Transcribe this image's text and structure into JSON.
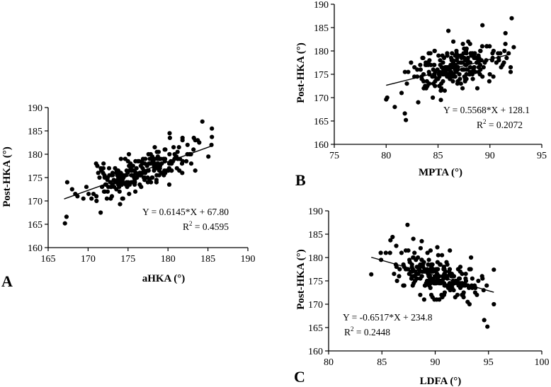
{
  "chart_data": [
    {
      "panel": "A",
      "type": "scatter",
      "xlabel": "aHKA (°)",
      "ylabel": "Post-HKA (°)",
      "xlim": [
        165,
        190
      ],
      "ylim": [
        160,
        190
      ],
      "xticks": [
        165,
        170,
        175,
        180,
        185,
        190
      ],
      "yticks": [
        160,
        165,
        170,
        175,
        180,
        185,
        190
      ],
      "fit": {
        "slope": 0.6145,
        "intercept": 67.8,
        "x_range": [
          167,
          185.5
        ]
      },
      "equation": "Y = 0.6145*X + 67.80",
      "r2_prefix": "R",
      "r2_sup": "2",
      "r2_value": " = 0.4595",
      "n_points": 240,
      "points_seed": 11,
      "x_mean": 176.2,
      "x_sd": 3.3,
      "resid_sd": 2.0,
      "extra_points": [
        [
          167.1,
          165.2
        ],
        [
          167.3,
          166.6
        ],
        [
          184.3,
          187.0
        ],
        [
          185.5,
          183.7
        ],
        [
          180.2,
          184.5
        ],
        [
          171.0,
          178.0
        ],
        [
          174.0,
          169.3
        ]
      ]
    },
    {
      "panel": "B",
      "type": "scatter",
      "xlabel": "MPTA (°)",
      "ylabel": "Post-HKA (°)",
      "xlim": [
        75,
        95
      ],
      "ylim": [
        160,
        190
      ],
      "xticks": [
        75,
        80,
        85,
        90,
        95
      ],
      "yticks": [
        160,
        165,
        170,
        175,
        180,
        185,
        190
      ],
      "fit": {
        "slope": 0.5568,
        "intercept": 128.1,
        "x_range": [
          80,
          92
        ]
      },
      "equation": "Y = 0.5568*X + 128.1",
      "r2_prefix": "R",
      "r2_sup": "2",
      "r2_value": " = 0.2072",
      "n_points": 240,
      "points_seed": 23,
      "x_mean": 86.5,
      "x_sd": 2.2,
      "resid_sd": 2.3,
      "extra_points": [
        [
          81.8,
          166.6
        ],
        [
          81.9,
          165.2
        ],
        [
          80.0,
          169.6
        ],
        [
          80.1,
          170.0
        ],
        [
          92.1,
          187.0
        ],
        [
          92.3,
          180.8
        ],
        [
          86.0,
          184.3
        ],
        [
          91.5,
          183.8
        ]
      ]
    },
    {
      "panel": "C",
      "type": "scatter",
      "xlabel": "LDFA (°)",
      "ylabel": "Post-HKA (°)",
      "xlim": [
        80,
        100
      ],
      "ylim": [
        160,
        190
      ],
      "xticks": [
        80,
        85,
        90,
        95,
        100
      ],
      "yticks": [
        160,
        165,
        170,
        175,
        180,
        185,
        190
      ],
      "fit": {
        "slope": -0.6517,
        "intercept": 234.8,
        "x_range": [
          84,
          95.5
        ]
      },
      "equation": "Y = -0.6517*X + 234.8",
      "r2_prefix": "R",
      "r2_sup": "2",
      "r2_value": " = 0.2448",
      "n_points": 240,
      "points_seed": 37,
      "x_mean": 90.3,
      "x_sd": 2.0,
      "resid_sd": 2.1,
      "extra_points": [
        [
          87.4,
          187.0
        ],
        [
          86.0,
          184.4
        ],
        [
          85.8,
          183.7
        ],
        [
          94.6,
          166.6
        ],
        [
          94.9,
          165.2
        ],
        [
          84.0,
          176.4
        ],
        [
          95.5,
          177.4
        ],
        [
          90.2,
          182.2
        ]
      ]
    }
  ]
}
